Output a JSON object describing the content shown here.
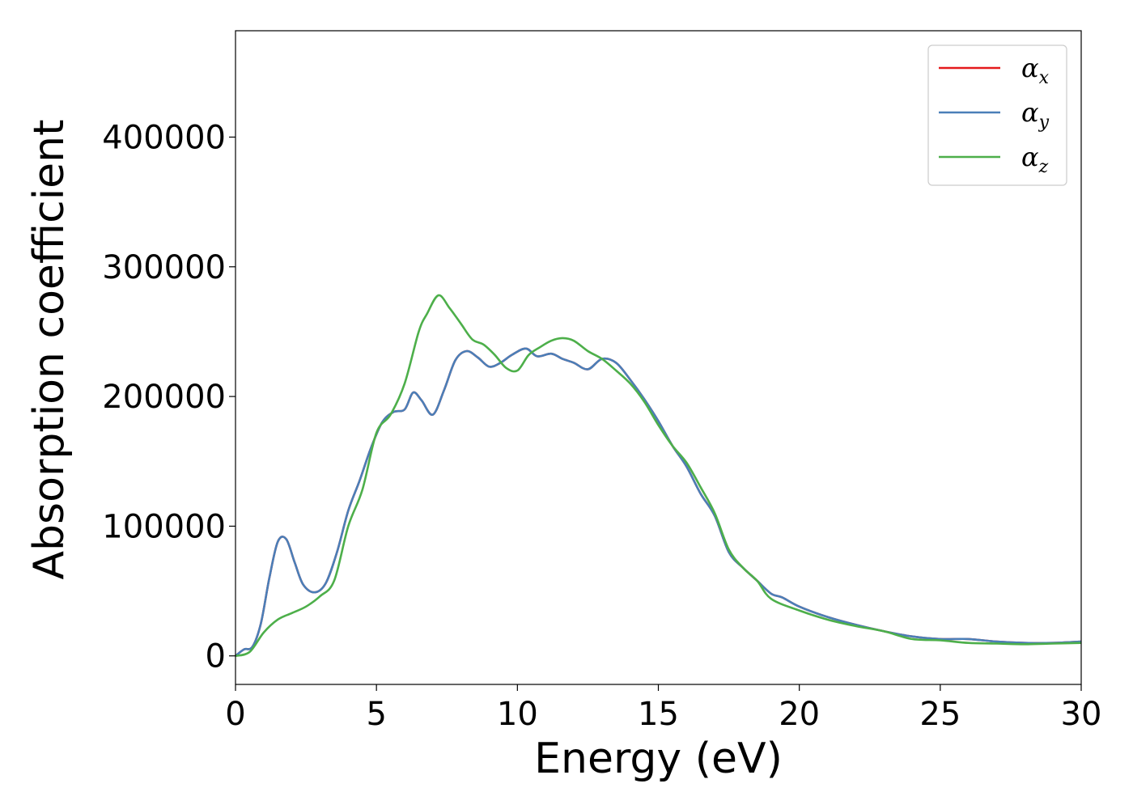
{
  "chart_data": {
    "type": "line",
    "xlabel": "Energy (eV)",
    "ylabel": "Absorption coefficient",
    "xlim": [
      0,
      30
    ],
    "ylim": [
      -22000,
      482000
    ],
    "xticks": [
      0,
      5,
      10,
      15,
      20,
      25,
      30
    ],
    "xtick_labels": [
      "0",
      "5",
      "10",
      "15",
      "20",
      "25",
      "30"
    ],
    "yticks": [
      0,
      100000,
      200000,
      300000,
      400000
    ],
    "ytick_labels": [
      "0",
      "100000",
      "200000",
      "300000",
      "400000"
    ],
    "grid": false,
    "legend_position": "top-right",
    "series": [
      {
        "name": "α",
        "subscript": "x",
        "color": "#e41a1c",
        "x": [
          0,
          0.3,
          0.6,
          0.9,
          1.2,
          1.5,
          1.8,
          2.1,
          2.4,
          2.8,
          3.2,
          3.6,
          4.0,
          4.4,
          4.8,
          5.2,
          5.6,
          6.0,
          6.3,
          6.6,
          7.0,
          7.4,
          7.8,
          8.2,
          8.6,
          9.0,
          9.4,
          9.8,
          10.3,
          10.7,
          11.2,
          11.6,
          12.0,
          12.5,
          13.0,
          13.5,
          14.0,
          14.5,
          15.0,
          15.5,
          16.0,
          16.5,
          17.0,
          17.5,
          18.0,
          18.5,
          19.0,
          19.4,
          20.0,
          21.0,
          22.0,
          23.0,
          24.0,
          25.0,
          26.0,
          27.0,
          28.0,
          29.0,
          30.0
        ],
        "y": [
          0,
          5000,
          7000,
          25000,
          60000,
          88000,
          90000,
          72000,
          55000,
          49000,
          56000,
          80000,
          112000,
          135000,
          160000,
          180000,
          188000,
          190000,
          203000,
          197000,
          186000,
          205000,
          228000,
          235000,
          230000,
          223000,
          226000,
          232000,
          237000,
          231000,
          233000,
          229000,
          226000,
          221000,
          229000,
          226000,
          213000,
          198000,
          181000,
          162000,
          146000,
          125000,
          108000,
          80000,
          68000,
          58000,
          48000,
          45000,
          38000,
          30000,
          24000,
          19000,
          15000,
          13000,
          13000,
          11000,
          10000,
          10000,
          11000
        ]
      },
      {
        "name": "α",
        "subscript": "y",
        "color": "#4a7fb8",
        "x": [
          0,
          0.3,
          0.6,
          0.9,
          1.2,
          1.5,
          1.8,
          2.1,
          2.4,
          2.8,
          3.2,
          3.6,
          4.0,
          4.4,
          4.8,
          5.2,
          5.6,
          6.0,
          6.3,
          6.6,
          7.0,
          7.4,
          7.8,
          8.2,
          8.6,
          9.0,
          9.4,
          9.8,
          10.3,
          10.7,
          11.2,
          11.6,
          12.0,
          12.5,
          13.0,
          13.5,
          14.0,
          14.5,
          15.0,
          15.5,
          16.0,
          16.5,
          17.0,
          17.5,
          18.0,
          18.5,
          19.0,
          19.4,
          20.0,
          21.0,
          22.0,
          23.0,
          24.0,
          25.0,
          26.0,
          27.0,
          28.0,
          29.0,
          30.0
        ],
        "y": [
          0,
          5000,
          7000,
          25000,
          60000,
          88000,
          90000,
          72000,
          55000,
          49000,
          56000,
          80000,
          112000,
          135000,
          160000,
          180000,
          188000,
          190000,
          203000,
          197000,
          186000,
          205000,
          228000,
          235000,
          230000,
          223000,
          226000,
          232000,
          237000,
          231000,
          233000,
          229000,
          226000,
          221000,
          229000,
          226000,
          213000,
          198000,
          181000,
          162000,
          146000,
          125000,
          108000,
          80000,
          68000,
          58000,
          48000,
          45000,
          38000,
          30000,
          24000,
          19000,
          15000,
          13000,
          13000,
          11000,
          10000,
          10000,
          11000
        ]
      },
      {
        "name": "α",
        "subscript": "z",
        "color": "#4daf4a",
        "x": [
          0,
          0.5,
          1.0,
          1.5,
          2.0,
          2.5,
          3.0,
          3.5,
          4.0,
          4.5,
          5.0,
          5.5,
          6.0,
          6.5,
          6.8,
          7.2,
          7.6,
          8.0,
          8.4,
          8.8,
          9.2,
          9.6,
          10.0,
          10.4,
          10.8,
          11.2,
          11.6,
          12.0,
          12.5,
          13.0,
          13.5,
          14.0,
          14.5,
          15.0,
          15.5,
          16.0,
          16.5,
          17.0,
          17.5,
          18.0,
          18.5,
          19.0,
          20.0,
          21.0,
          22.0,
          23.0,
          24.0,
          25.0,
          26.0,
          27.0,
          28.0,
          29.0,
          30.0
        ],
        "y": [
          0,
          3000,
          18000,
          28000,
          33000,
          38000,
          46000,
          58000,
          100000,
          128000,
          172000,
          186000,
          210000,
          250000,
          264000,
          278000,
          268000,
          256000,
          244000,
          240000,
          232000,
          222000,
          220000,
          232000,
          238000,
          243000,
          245000,
          243000,
          235000,
          229000,
          220000,
          210000,
          196000,
          178000,
          162000,
          149000,
          130000,
          110000,
          82000,
          68000,
          58000,
          44000,
          35000,
          28000,
          23000,
          19000,
          13000,
          12000,
          10000,
          9500,
          9000,
          9500,
          10000
        ]
      }
    ]
  }
}
